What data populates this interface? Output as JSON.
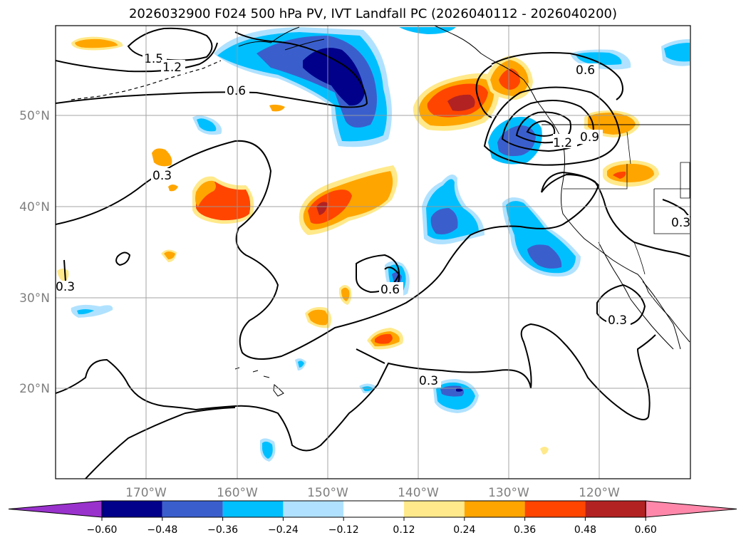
{
  "title": "2026032900 F024 500 hPa PV, IVT Landfall PC (2026040112 - 2026040200)",
  "map": {
    "lon_labels": [
      "170°W",
      "160°W",
      "150°W",
      "140°W",
      "130°W",
      "120°W"
    ],
    "lat_labels": [
      "50°N",
      "40°N",
      "30°N",
      "20°N"
    ],
    "contour_labels": [
      "1.5",
      "1.2",
      "0.6",
      "0.3",
      "0.3",
      "0.6",
      "0.3",
      "0.3",
      "0.6",
      "0.9",
      "1.2",
      "0.3"
    ]
  },
  "colorbar": {
    "ticks": [
      "−0.60",
      "−0.48",
      "−0.36",
      "−0.24",
      "−0.12",
      "0.12",
      "0.24",
      "0.36",
      "0.48",
      "0.60"
    ],
    "colors": [
      "#9932cc",
      "#00008b",
      "#3a5fcd",
      "#00bfff",
      "#b0e2ff",
      "#ffffff",
      "#ffe98a",
      "#ffa500",
      "#ff4500",
      "#b22222",
      "#ff88aa"
    ]
  },
  "colors": {
    "neg1": "#b0e2ff",
    "neg2": "#00bfff",
    "neg3": "#3a5fcd",
    "neg4": "#00008b",
    "pos1": "#ffe98a",
    "pos2": "#ffa500",
    "pos3": "#ff4500",
    "pos4": "#b22222"
  }
}
